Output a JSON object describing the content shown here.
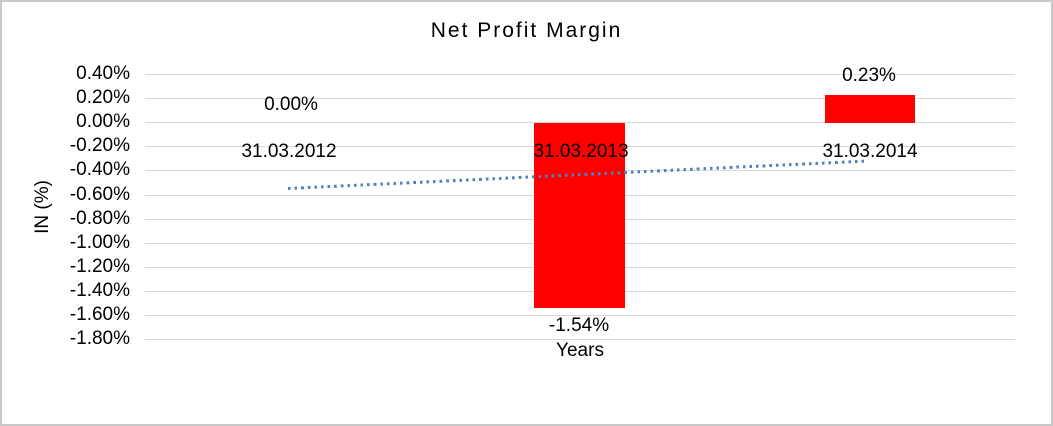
{
  "window": {
    "background": "#FFFFFF",
    "border_color": "#C9C9C9"
  },
  "chart": {
    "title": "Net Profit Margin",
    "y_axis": {
      "title": "IN (%)",
      "ticks": [
        "0.40%",
        "0.20%",
        "0.00%",
        "-0.20%",
        "-0.40%",
        "-0.60%",
        "-0.80%",
        "-1.00%",
        "-1.20%",
        "-1.40%",
        "-1.60%",
        "-1.80%"
      ]
    },
    "x_axis": {
      "title": "Years",
      "categories": [
        "31.03.2012",
        "31.03.2013",
        "31.03.2014"
      ]
    },
    "data_labels": [
      "0.00%",
      "-1.54%",
      "0.23%"
    ]
  },
  "chart_data": {
    "type": "bar",
    "title": "Net Profit Margin",
    "xlabel": "Years",
    "ylabel": "IN (%)",
    "categories": [
      "31.03.2012",
      "31.03.2013",
      "31.03.2014"
    ],
    "series": [
      {
        "name": "Net Profit Margin",
        "values": [
          0.0,
          -1.54,
          0.23
        ],
        "unit": "%",
        "color": "#FF0000",
        "data_labels": [
          "0.00%",
          "-1.54%",
          "0.23%"
        ]
      }
    ],
    "trendline": {
      "type": "linear",
      "style": "dotted",
      "color": "#4E81BD",
      "approx_endpoints": [
        -0.56,
        -0.33
      ],
      "unit": "%"
    },
    "ylim": [
      -1.8,
      0.4
    ],
    "ytick_step": 0.2,
    "grid": true,
    "gridline_color": "#D9D9D9",
    "legend_position": "none",
    "bar_color": "#FF0000"
  }
}
